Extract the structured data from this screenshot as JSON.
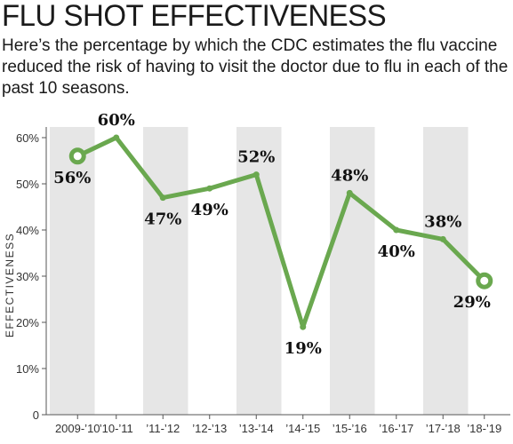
{
  "title": "FLU SHOT EFFECTIVENESS",
  "subtitle": "Here’s the percentage by which the CDC estimates the flu vaccine reduced the risk of having to visit the doctor due to flu in each of the past 10 seasons.",
  "colors": {
    "line": "#6aa84f",
    "band": "#e6e6e6",
    "axis": "#555555"
  },
  "chart_data": {
    "type": "line",
    "title": "FLU SHOT EFFECTIVENESS",
    "xlabel": "",
    "ylabel": "EFFECTIVENESS",
    "categories": [
      "2009-’10",
      "’10-’11",
      "’11-’12",
      "’12-’13",
      "’13-’14",
      "’14-’15",
      "’15-’16",
      "’16-’17",
      "’17-’18",
      "’18-’19"
    ],
    "values": [
      56,
      60,
      47,
      49,
      52,
      19,
      48,
      40,
      38,
      29
    ],
    "data_labels": [
      "56%",
      "60%",
      "47%",
      "49%",
      "52%",
      "19%",
      "48%",
      "40%",
      "38%",
      "29%"
    ],
    "label_positions": [
      "below",
      "above",
      "below",
      "below",
      "above",
      "below",
      "above",
      "below",
      "above",
      "below"
    ],
    "ylim": [
      0,
      60
    ],
    "yticks": [
      0,
      10,
      20,
      30,
      40,
      50,
      60
    ],
    "ytick_labels": [
      "0",
      "10%",
      "20%",
      "30%",
      "40%",
      "50%",
      "60%"
    ],
    "grid": false,
    "alternating_bands": true,
    "endpoint_markers": true
  }
}
